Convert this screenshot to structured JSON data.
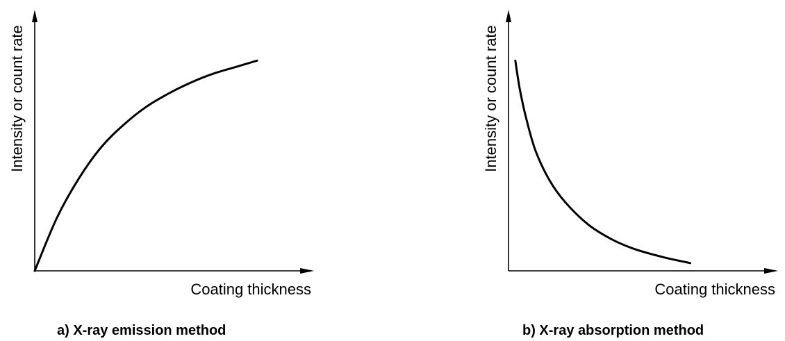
{
  "chart_data": [
    {
      "type": "line",
      "caption": "a)  X-ray emission method",
      "xlabel": "Coating thickness",
      "ylabel": "Intensity or count rate",
      "ticks": "none",
      "trend": "increasing, saturating",
      "x": [
        0,
        0.1,
        0.2,
        0.3,
        0.4,
        0.5,
        0.6,
        0.7,
        0.8,
        0.9,
        1.0
      ],
      "y": [
        0,
        0.24,
        0.42,
        0.56,
        0.66,
        0.74,
        0.8,
        0.85,
        0.89,
        0.92,
        0.95
      ],
      "xlim": [
        0,
        1.25
      ],
      "ylim": [
        0,
        1.18
      ]
    },
    {
      "type": "line",
      "caption": "b)  X-ray absorption method",
      "xlabel": "Coating thickness",
      "ylabel": "Intensity or count rate",
      "ticks": "none",
      "trend": "decreasing, decaying",
      "x": [
        0.03,
        0.05,
        0.08,
        0.12,
        0.18,
        0.25,
        0.35,
        0.45,
        0.55,
        0.68,
        0.8
      ],
      "y": [
        0.95,
        0.82,
        0.68,
        0.54,
        0.41,
        0.31,
        0.21,
        0.145,
        0.1,
        0.062,
        0.035
      ],
      "xlim": [
        0,
        1.15
      ],
      "ylim": [
        0,
        1.18
      ]
    }
  ]
}
